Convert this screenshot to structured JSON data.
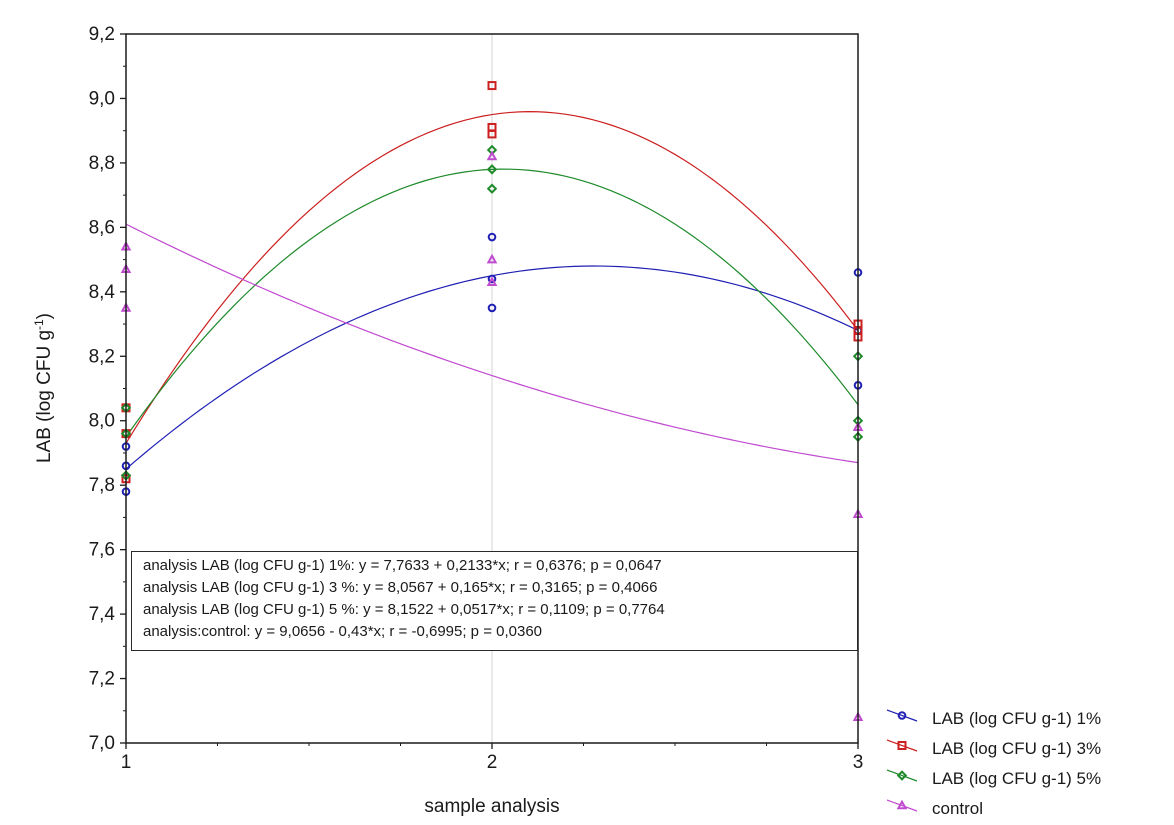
{
  "chart_data": {
    "type": "scatter",
    "xlabel": "sample analysis",
    "ylabel": "LAB (log CFU g",
    "ylabel_sup": "-1",
    "ylabel_close": ")",
    "xlim": [
      1,
      3
    ],
    "ylim": [
      7.0,
      9.2
    ],
    "x_ticks": [
      1,
      2,
      3
    ],
    "x_tick_labels": [
      "1",
      "2",
      "3"
    ],
    "y_ticks": [
      7.0,
      7.2,
      7.4,
      7.6,
      7.8,
      8.0,
      8.2,
      8.4,
      8.6,
      8.8,
      9.0,
      9.2
    ],
    "y_tick_labels": [
      "7,0",
      "7,2",
      "7,4",
      "7,6",
      "7,8",
      "8,0",
      "8,2",
      "8,4",
      "8,6",
      "8,8",
      "9,0",
      "9,2"
    ],
    "grid": "vertical line at x = 2 only",
    "legend_position": "bottom-right, outside plot",
    "series": [
      {
        "name": "LAB (log CFU g-1) 1%",
        "color": "#1f1fb4",
        "marker": "circle",
        "x": [
          1,
          1,
          1,
          2,
          2,
          2,
          3,
          3,
          3
        ],
        "y": [
          7.78,
          7.86,
          7.92,
          8.35,
          8.44,
          8.57,
          8.11,
          8.28,
          8.46
        ],
        "fit_x": [
          1,
          2,
          3
        ],
        "fit_y": [
          7.85,
          8.45,
          8.28
        ]
      },
      {
        "name": "LAB (log CFU g-1) 3%",
        "color": "#cc1f1f",
        "marker": "square",
        "x": [
          1,
          1,
          1,
          2,
          2,
          2,
          3,
          3,
          3
        ],
        "y": [
          7.82,
          7.96,
          8.04,
          8.89,
          8.91,
          9.04,
          8.26,
          8.28,
          8.3
        ],
        "fit_x": [
          1,
          2,
          3
        ],
        "fit_y": [
          7.93,
          8.95,
          8.28
        ]
      },
      {
        "name": "LAB (log CFU g-1) 5%",
        "color": "#1e8a2a",
        "marker": "diamond",
        "x": [
          1,
          1,
          1,
          2,
          2,
          2,
          3,
          3,
          3
        ],
        "y": [
          7.83,
          7.96,
          8.04,
          8.72,
          8.78,
          8.84,
          7.95,
          8.0,
          8.2
        ],
        "fit_x": [
          1,
          2,
          3
        ],
        "fit_y": [
          7.95,
          8.78,
          8.05
        ]
      },
      {
        "name": "control",
        "color": "#c04ad0",
        "marker": "triangle",
        "x": [
          1,
          1,
          1,
          2,
          2,
          2,
          3,
          3,
          3
        ],
        "y": [
          8.35,
          8.47,
          8.54,
          8.43,
          8.5,
          8.82,
          7.08,
          7.71,
          7.98
        ],
        "fit_x": [
          1,
          2,
          3
        ],
        "fit_y": [
          8.61,
          8.14,
          7.87
        ]
      }
    ],
    "annotations": [
      "analysis LAB (log CFU g-1) 1%:  y = 7,7633 + 0,2133*x;  r = 0,6376; p = 0,0647",
      "analysis LAB (log CFU g-1) 3 %:  y = 8,0567 + 0,165*x;  r = 0,3165; p = 0,4066",
      "analysis LAB (log CFU g-1) 5 %:  y = 8,1522 + 0,0517*x;  r = 0,1109; p = 0,7764",
      "analysis:control:  y = 9,0656 - 0,43*x;  r = -0,6995; p = 0,0360"
    ]
  }
}
